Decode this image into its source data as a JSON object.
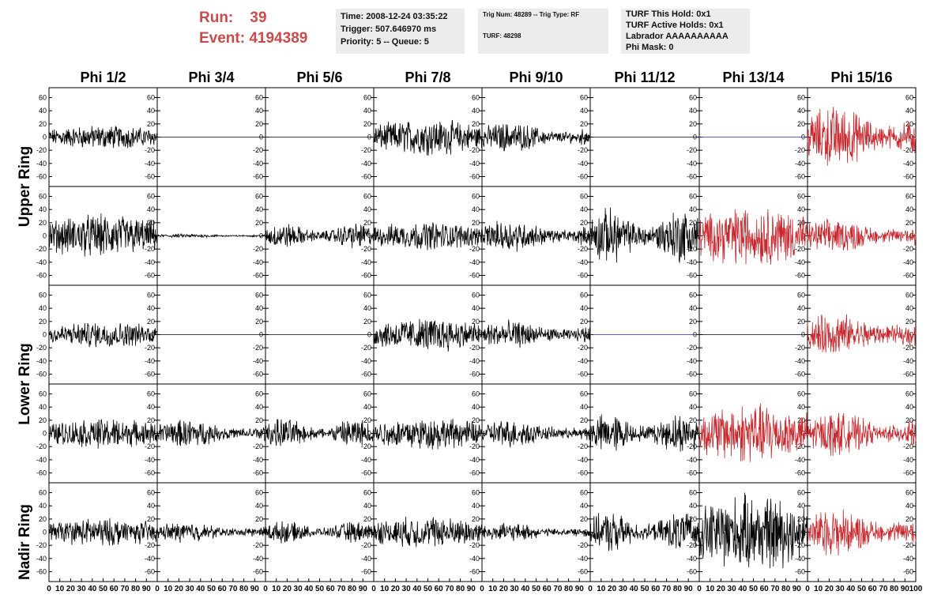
{
  "header": {
    "run_label": "Run:",
    "run_value": "39",
    "event_label": "Event:",
    "event_value": "4194389",
    "box1": [
      "Time: 2008-12-24 03:35:22",
      "Trigger: 507.646970 ms",
      "Priority: 5 -- Queue: 5"
    ],
    "box2": [
      "Trig Num: 48289 -- Trig Type: RF",
      "TURF: 48298"
    ],
    "box3": [
      "TURF This Hold: 0x1",
      "TURF Active Holds: 0x1",
      "Labrador AAAAAAAAAA",
      "Phi Mask: 0"
    ]
  },
  "chart_data": {
    "type": "line",
    "columns": [
      "Phi 1/2",
      "Phi 3/4",
      "Phi 5/6",
      "Phi 7/8",
      "Phi 9/10",
      "Phi 11/12",
      "Phi 13/14",
      "Phi 15/16"
    ],
    "row_labels": [
      "Upper Ring",
      "Lower Ring",
      "Nadir Ring"
    ],
    "ylim": [
      -75,
      75
    ],
    "xlim": [
      0,
      100
    ],
    "y_ticks": [
      -60,
      -40,
      -20,
      0,
      20,
      40,
      60
    ],
    "x_ticks": [
      0,
      10,
      20,
      30,
      40,
      50,
      60,
      70,
      80,
      90,
      100
    ],
    "colors": {
      "normal": "#000000",
      "highlight": "#c8282d",
      "flat": "#1f2f9e"
    },
    "panel_rows": [
      [
        {
          "amplitude": 12,
          "color": "normal"
        },
        {
          "amplitude": 0,
          "color": "normal"
        },
        {
          "amplitude": 0,
          "color": "normal"
        },
        {
          "amplitude": 18,
          "color": "normal"
        },
        {
          "amplitude": 15,
          "color": "normal"
        },
        {
          "amplitude": 0,
          "color": "normal"
        },
        {
          "amplitude": 0,
          "color": "flat"
        },
        {
          "amplitude": 32,
          "color": "highlight"
        }
      ],
      [
        {
          "amplitude": 22,
          "color": "normal"
        },
        {
          "amplitude": 2,
          "color": "normal"
        },
        {
          "amplitude": 13,
          "color": "normal"
        },
        {
          "amplitude": 14,
          "color": "normal"
        },
        {
          "amplitude": 16,
          "color": "normal"
        },
        {
          "amplitude": 28,
          "color": "normal"
        },
        {
          "amplitude": 30,
          "color": "highlight"
        },
        {
          "amplitude": 17,
          "color": "highlight"
        }
      ],
      [
        {
          "amplitude": 13,
          "color": "normal"
        },
        {
          "amplitude": 0,
          "color": "normal"
        },
        {
          "amplitude": 0,
          "color": "normal"
        },
        {
          "amplitude": 17,
          "color": "normal"
        },
        {
          "amplitude": 14,
          "color": "normal"
        },
        {
          "amplitude": 0,
          "color": "flat"
        },
        {
          "amplitude": 0,
          "color": "normal"
        },
        {
          "amplitude": 22,
          "color": "highlight"
        }
      ],
      [
        {
          "amplitude": 15,
          "color": "normal"
        },
        {
          "amplitude": 14,
          "color": "normal"
        },
        {
          "amplitude": 15,
          "color": "normal"
        },
        {
          "amplitude": 16,
          "color": "normal"
        },
        {
          "amplitude": 14,
          "color": "normal"
        },
        {
          "amplitude": 20,
          "color": "normal"
        },
        {
          "amplitude": 30,
          "color": "highlight"
        },
        {
          "amplitude": 22,
          "color": "highlight"
        }
      ],
      [
        {
          "amplitude": 14,
          "color": "normal"
        },
        {
          "amplitude": 10,
          "color": "normal"
        },
        {
          "amplitude": 11,
          "color": "normal"
        },
        {
          "amplitude": 16,
          "color": "normal"
        },
        {
          "amplitude": 9,
          "color": "normal"
        },
        {
          "amplitude": 20,
          "color": "normal"
        },
        {
          "amplitude": 38,
          "color": "normal"
        },
        {
          "amplitude": 24,
          "color": "highlight"
        }
      ]
    ]
  }
}
